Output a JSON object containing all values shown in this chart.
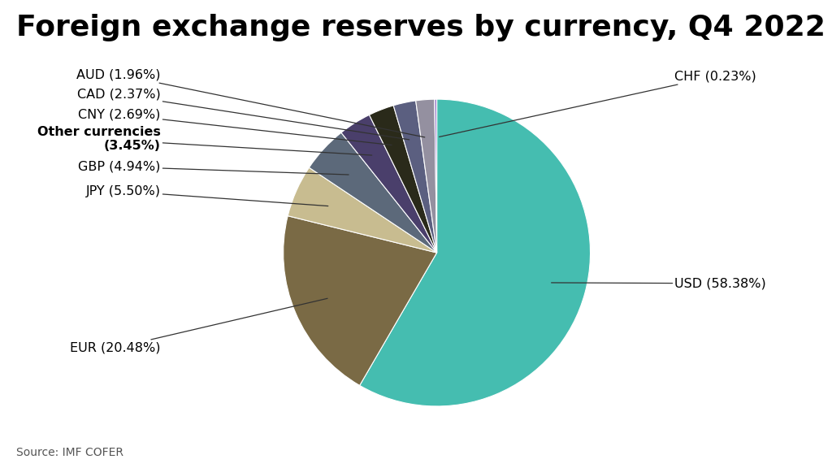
{
  "title": "Foreign exchange reserves by currency, Q4 2022",
  "source": "Source: IMF COFER",
  "labels": [
    "USD",
    "EUR",
    "JPY",
    "GBP",
    "Other currencies",
    "CNY",
    "CAD",
    "AUD",
    "CHF"
  ],
  "values": [
    58.38,
    20.48,
    5.5,
    4.94,
    3.45,
    2.69,
    2.37,
    1.96,
    0.23
  ],
  "colors": [
    "#45BDB0",
    "#7A6A45",
    "#C8BC90",
    "#5C697A",
    "#4A3F6B",
    "#2A2A1A",
    "#5B5F80",
    "#9490A0",
    "#9B7EC8"
  ],
  "background_color": "#FFFFFF",
  "title_fontsize": 26,
  "label_fontsize": 11.5,
  "source_fontsize": 10,
  "startangle": 90
}
